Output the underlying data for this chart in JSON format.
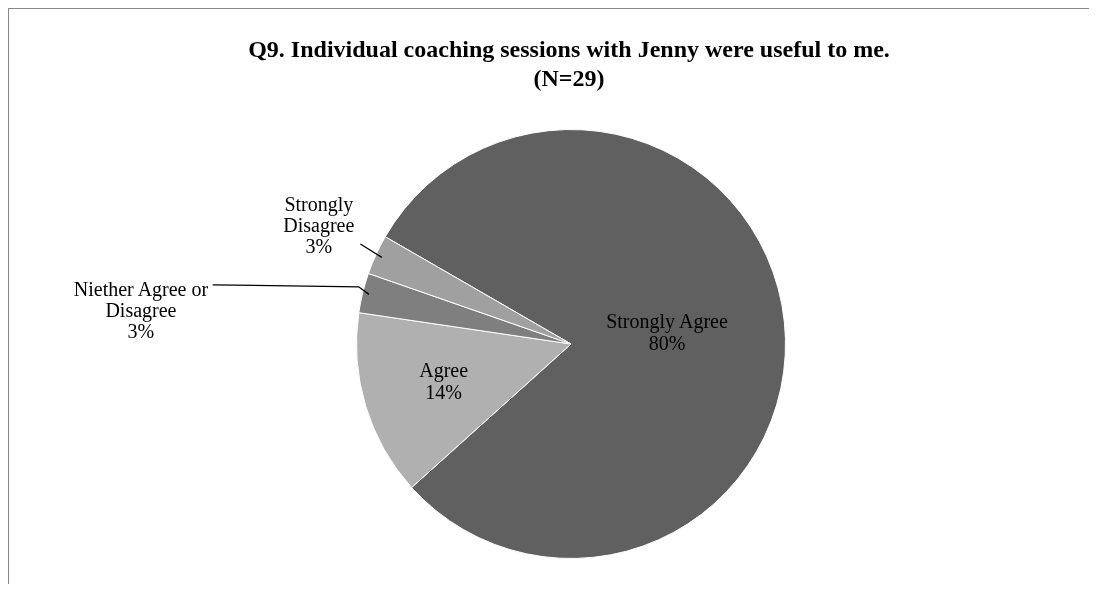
{
  "chart_data": {
    "type": "pie",
    "title": "Q9. Individual coaching sessions with Jenny were useful to me. (N=29)",
    "categories": [
      "Strongly Agree",
      "Agree",
      "Niether Agree or Disagree",
      "Strongly Disagree"
    ],
    "values": [
      80,
      14,
      3,
      3
    ],
    "colors": [
      "#606060",
      "#b0b0b0",
      "#7f7f7f",
      "#a0a0a0"
    ],
    "value_labels": [
      "80%",
      "14%",
      "3%",
      "3%"
    ],
    "legend": false
  }
}
